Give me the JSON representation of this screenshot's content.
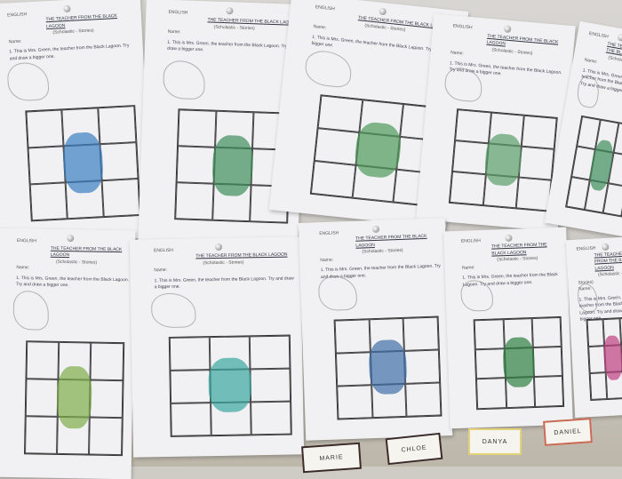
{
  "worksheet": {
    "subject": "ENGLISH",
    "title": "THE TEACHER FROM THE BLACK LAGOON",
    "subtitle": "(Scholastic - Stories)",
    "name_label": "Name:",
    "task": "1. This is Mrs. Green, the teacher from the Black Lagoon. Try and draw a bigger one."
  },
  "name_cards": [
    {
      "label": "MARIE",
      "color": "#3a2a2a"
    },
    {
      "label": "CHLOE",
      "color": "#3a2a2a"
    },
    {
      "label": "DANYA",
      "color": "#e3d27a"
    },
    {
      "label": "DANIEL",
      "color": "#c96a55"
    }
  ],
  "colors": {
    "paper": "#f1f1f3",
    "wall": "#cfccc6",
    "crocodile": "#4f9a5a"
  }
}
